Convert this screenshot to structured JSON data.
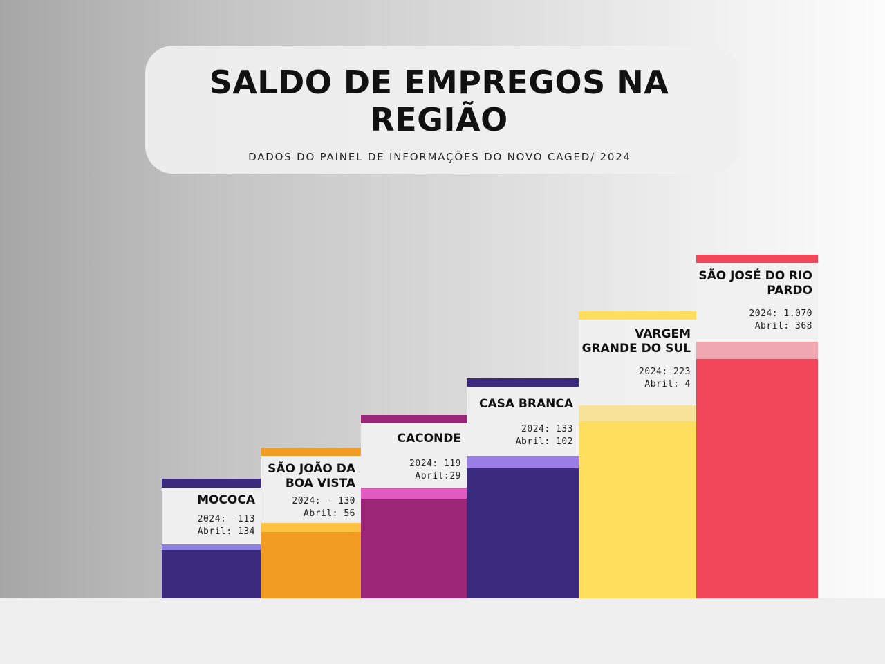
{
  "header": {
    "title_line1": "SALDO DE EMPREGOS NA",
    "title_line2": "REGIÃO",
    "subtitle": "DADOS DO PAINEL DE INFORMAÇÕES DO NOVO CAGED/ 2024"
  },
  "chart_data": {
    "type": "bar",
    "categories": [
      "MOCOCA",
      "SÃO JOÃO DA BOA VISTA",
      "CACONDE",
      "CASA BRANCA",
      "VARGEM GRANDE DO SUL",
      "SÃO JOSÉ DO RIO PARDO"
    ],
    "series": [
      {
        "values": [
          -113,
          -130,
          119,
          133,
          223,
          1070
        ]
      },
      {
        "values": [
          134,
          56,
          29,
          102,
          4,
          368
        ]
      }
    ]
  },
  "bars": [
    {
      "name": "MOCOCA",
      "line_2024": "2024: -113",
      "line_abril": "Abril: 134",
      "color": "#3a2b7e",
      "band_color": "#8c7fe0"
    },
    {
      "name": "SÃO JOÃO DA\nBOA VISTA",
      "line_2024": "2024: - 130",
      "line_abril": "Abril: 56",
      "color": "#f39c24",
      "band_color": "#ffc142"
    },
    {
      "name": "CACONDE",
      "line_2024": "2024: 119",
      "line_abril": "Abril:29",
      "color": "#9b2576",
      "band_color": "#e05abf"
    },
    {
      "name": "CASA BRANCA",
      "line_2024": "2024: 133",
      "line_abril": "Abril: 102",
      "color": "#3a2b7e",
      "band_color": "#9a7ee6"
    },
    {
      "name": "VARGEM\nGRANDE DO SUL",
      "line_2024": "2024: 223",
      "line_abril": "Abril: 4",
      "color": "#ffdf5c",
      "band_color": "#f8e39a"
    },
    {
      "name": "SÃO JOSÉ DO RIO\nPARDO",
      "line_2024": "2024: 1.070",
      "line_abril": "Abril: 368",
      "color": "#f2465a",
      "band_color": "#f0a7b0"
    }
  ]
}
